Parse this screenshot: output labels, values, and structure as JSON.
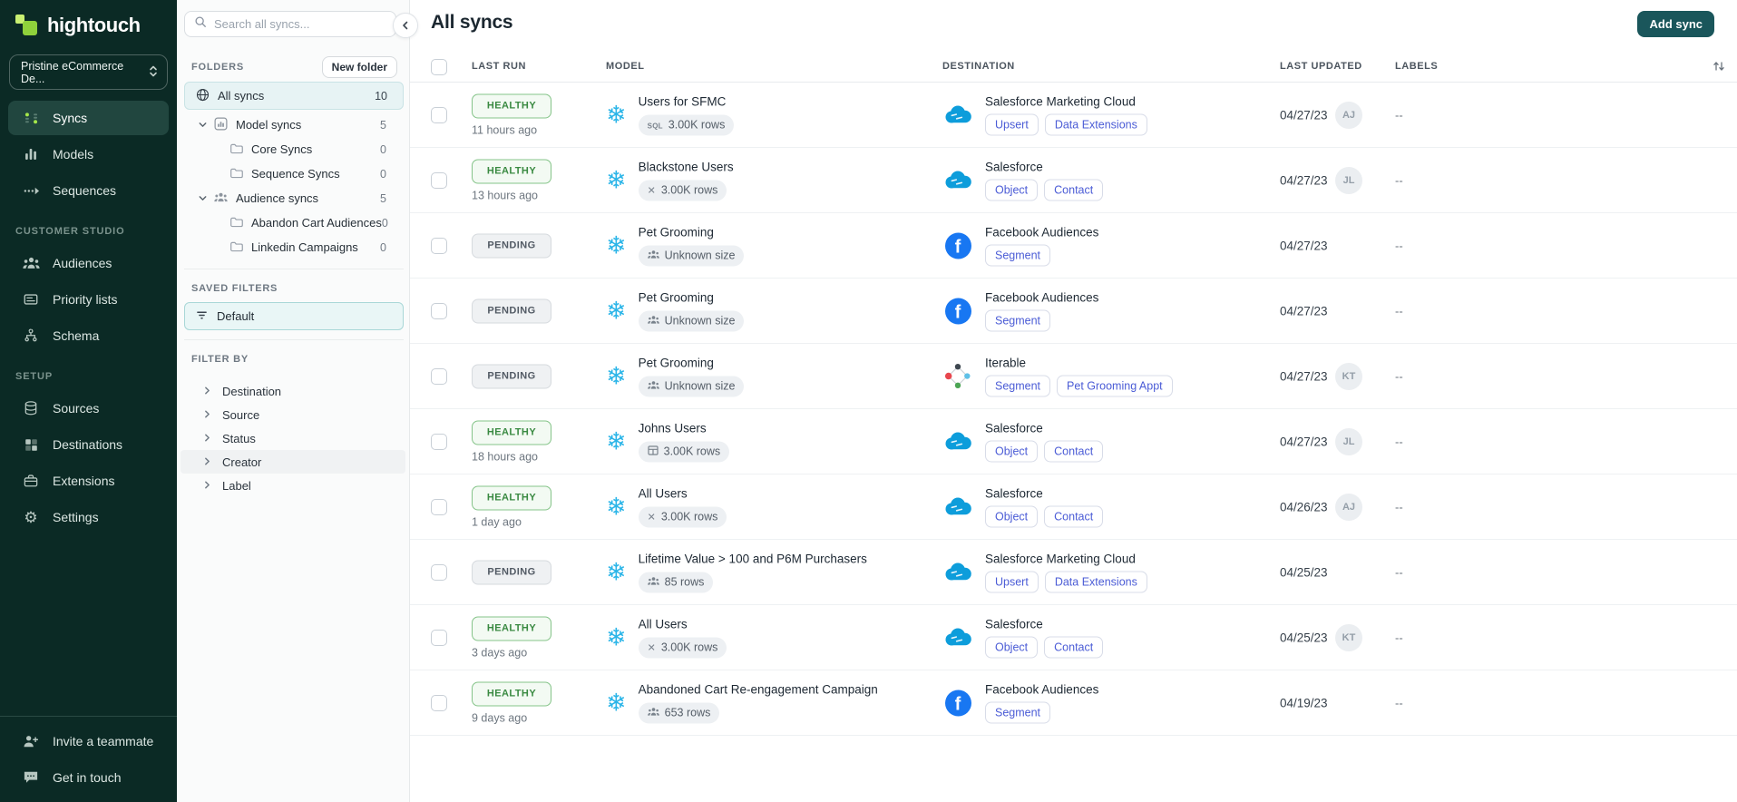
{
  "colors": {
    "accent_green": "#8fd13b",
    "sidebar_bg": "#0b2a25",
    "teal_button": "#1a565b",
    "snowflake_blue": "#2bb5e8",
    "facebook_blue": "#1877f2",
    "salesforce_blue": "#0d9ddb",
    "healthy_green": "#3a8a42",
    "tag_indigo": "#4b5cd6"
  },
  "sidebar": {
    "brand": "hightouch",
    "workspace": "Pristine eCommerce De...",
    "primary": [
      {
        "label": "Syncs",
        "icon": "syncs-icon",
        "active": true
      },
      {
        "label": "Models",
        "icon": "models-icon"
      },
      {
        "label": "Sequences",
        "icon": "sequences-icon"
      }
    ],
    "sections": [
      {
        "label": "CUSTOMER STUDIO",
        "items": [
          {
            "label": "Audiences",
            "icon": "audiences-icon"
          },
          {
            "label": "Priority lists",
            "icon": "priority-lists-icon"
          },
          {
            "label": "Schema",
            "icon": "schema-icon"
          }
        ]
      },
      {
        "label": "SETUP",
        "items": [
          {
            "label": "Sources",
            "icon": "sources-icon"
          },
          {
            "label": "Destinations",
            "icon": "destinations-icon"
          },
          {
            "label": "Extensions",
            "icon": "extensions-icon"
          },
          {
            "label": "Settings",
            "icon": "settings-icon"
          }
        ]
      }
    ],
    "footer": [
      {
        "label": "Invite a teammate",
        "icon": "invite-icon"
      },
      {
        "label": "Get in touch",
        "icon": "chat-icon"
      }
    ]
  },
  "explorer": {
    "search_placeholder": "Search all syncs...",
    "folders_label": "FOLDERS",
    "new_folder_button": "New folder",
    "folders": [
      {
        "label": "All syncs",
        "count": "10",
        "icon": "globe-icon",
        "indent": 0,
        "active": true
      },
      {
        "label": "Model syncs",
        "count": "5",
        "icon": "model-folder-icon",
        "indent": 1,
        "expanded": true
      },
      {
        "label": "Core Syncs",
        "count": "0",
        "icon": "folder-icon",
        "indent": 2
      },
      {
        "label": "Sequence Syncs",
        "count": "0",
        "icon": "folder-icon",
        "indent": 2
      },
      {
        "label": "Audience syncs",
        "count": "5",
        "icon": "audience-folder-icon",
        "indent": 1,
        "expanded": true
      },
      {
        "label": "Abandon Cart Audiences",
        "count": "0",
        "icon": "folder-icon",
        "indent": 2
      },
      {
        "label": "Linkedin Campaigns",
        "count": "0",
        "icon": "folder-icon",
        "indent": 2
      }
    ],
    "saved_filters_label": "SAVED FILTERS",
    "saved_filters": [
      {
        "label": "Default",
        "icon": "filter-icon"
      }
    ],
    "filter_by_label": "FILTER BY",
    "filters": [
      {
        "label": "Destination"
      },
      {
        "label": "Source"
      },
      {
        "label": "Status"
      },
      {
        "label": "Creator",
        "highlighted": true
      },
      {
        "label": "Label"
      }
    ]
  },
  "main": {
    "title": "All syncs",
    "add_sync_button": "Add sync",
    "table": {
      "columns": [
        "LAST RUN",
        "MODEL",
        "DESTINATION",
        "LAST UPDATED",
        "LABELS"
      ],
      "rows": [
        {
          "status": "HEALTHY",
          "last_run": "11 hours ago",
          "model": "Users for SFMC",
          "model_icon": "snowflake-icon",
          "size": "3.00K rows",
          "size_icon": "sql-icon",
          "destination": "Salesforce Marketing Cloud",
          "destination_icon": "salesforce-icon",
          "tags": [
            "Upsert",
            "Data Extensions"
          ],
          "updated": "04/27/23",
          "avatar": "AJ",
          "labels": "--"
        },
        {
          "status": "HEALTHY",
          "last_run": "13 hours ago",
          "model": "Blackstone Users",
          "model_icon": "snowflake-icon",
          "size": "3.00K rows",
          "size_icon": "model-x-icon",
          "destination": "Salesforce",
          "destination_icon": "salesforce-icon",
          "tags": [
            "Object",
            "Contact"
          ],
          "updated": "04/27/23",
          "avatar": "JL",
          "labels": "--"
        },
        {
          "status": "PENDING",
          "last_run": "",
          "model": "Pet Grooming",
          "model_icon": "snowflake-icon",
          "size": "Unknown size",
          "size_icon": "audience-size-icon",
          "destination": "Facebook Audiences",
          "destination_icon": "facebook-icon",
          "tags": [
            "Segment"
          ],
          "updated": "04/27/23",
          "avatar": "",
          "labels": "--"
        },
        {
          "status": "PENDING",
          "last_run": "",
          "model": "Pet Grooming",
          "model_icon": "snowflake-icon",
          "size": "Unknown size",
          "size_icon": "audience-size-icon",
          "destination": "Facebook Audiences",
          "destination_icon": "facebook-icon",
          "tags": [
            "Segment"
          ],
          "updated": "04/27/23",
          "avatar": "",
          "labels": "--"
        },
        {
          "status": "PENDING",
          "last_run": "",
          "model": "Pet Grooming",
          "model_icon": "snowflake-icon",
          "size": "Unknown size",
          "size_icon": "audience-size-icon",
          "destination": "Iterable",
          "destination_icon": "iterable-icon",
          "tags": [
            "Segment",
            "Pet Grooming Appt"
          ],
          "updated": "04/27/23",
          "avatar": "KT",
          "labels": "--"
        },
        {
          "status": "HEALTHY",
          "last_run": "18 hours ago",
          "model": "Johns Users",
          "model_icon": "snowflake-icon",
          "size": "3.00K rows",
          "size_icon": "table-icon",
          "destination": "Salesforce",
          "destination_icon": "salesforce-icon",
          "tags": [
            "Object",
            "Contact"
          ],
          "updated": "04/27/23",
          "avatar": "JL",
          "labels": "--"
        },
        {
          "status": "HEALTHY",
          "last_run": "1 day ago",
          "model": "All Users",
          "model_icon": "snowflake-icon",
          "size": "3.00K rows",
          "size_icon": "model-x-icon",
          "destination": "Salesforce",
          "destination_icon": "salesforce-icon",
          "tags": [
            "Object",
            "Contact"
          ],
          "updated": "04/26/23",
          "avatar": "AJ",
          "labels": "--"
        },
        {
          "status": "PENDING",
          "last_run": "",
          "model": "Lifetime Value > 100 and P6M Purchasers",
          "model_icon": "snowflake-icon",
          "size": "85 rows",
          "size_icon": "audience-size-icon",
          "destination": "Salesforce Marketing Cloud",
          "destination_icon": "salesforce-icon",
          "tags": [
            "Upsert",
            "Data Extensions"
          ],
          "updated": "04/25/23",
          "avatar": "",
          "labels": "--"
        },
        {
          "status": "HEALTHY",
          "last_run": "3 days ago",
          "model": "All Users",
          "model_icon": "snowflake-icon",
          "size": "3.00K rows",
          "size_icon": "model-x-icon",
          "destination": "Salesforce",
          "destination_icon": "salesforce-icon",
          "tags": [
            "Object",
            "Contact"
          ],
          "updated": "04/25/23",
          "avatar": "KT",
          "labels": "--"
        },
        {
          "status": "HEALTHY",
          "last_run": "9 days ago",
          "model": "Abandoned Cart Re-engagement Campaign",
          "model_icon": "snowflake-icon",
          "size": "653 rows",
          "size_icon": "audience-size-icon",
          "destination": "Facebook Audiences",
          "destination_icon": "facebook-icon",
          "tags": [
            "Segment"
          ],
          "updated": "04/19/23",
          "avatar": "",
          "labels": "--"
        }
      ]
    }
  }
}
